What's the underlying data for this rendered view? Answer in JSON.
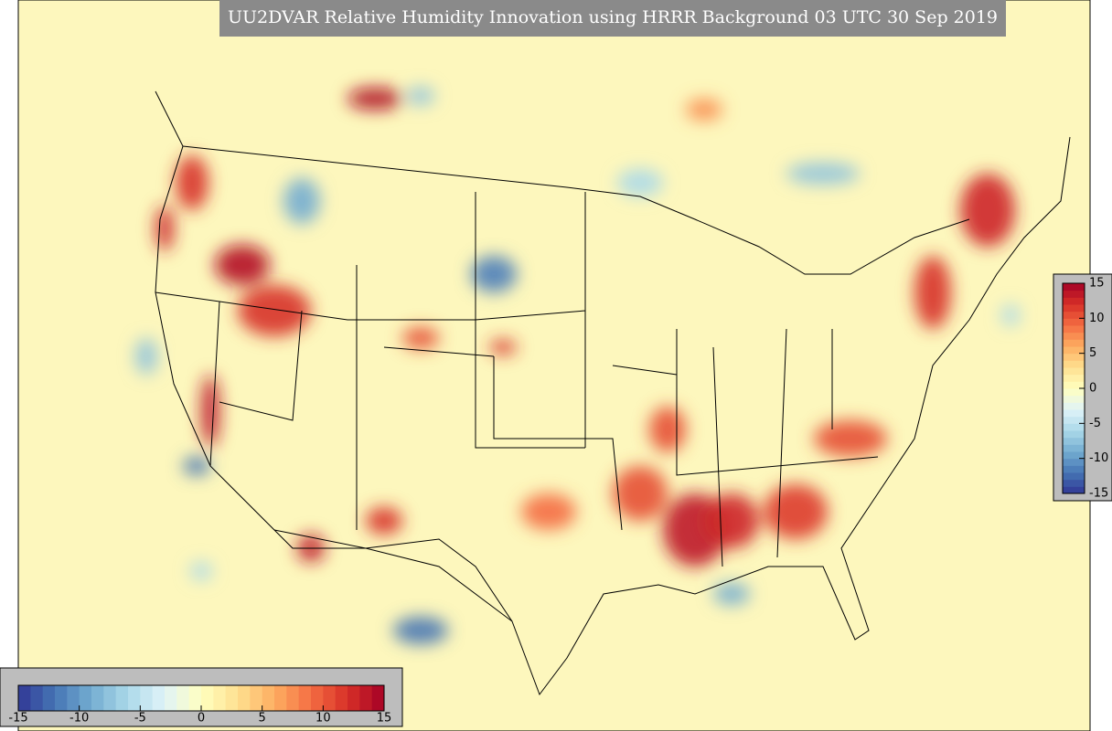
{
  "title": "UU2DVAR Relative Humidity Innovation using HRRR Background 03 UTC 30 Sep 2019",
  "colorbar_bottom": {
    "ticks": [
      -15,
      -10,
      -5,
      0,
      5,
      10,
      15
    ]
  },
  "colorbar_right": {
    "ticks": [
      15,
      10,
      5,
      0,
      -5,
      -10,
      -15
    ]
  }
}
